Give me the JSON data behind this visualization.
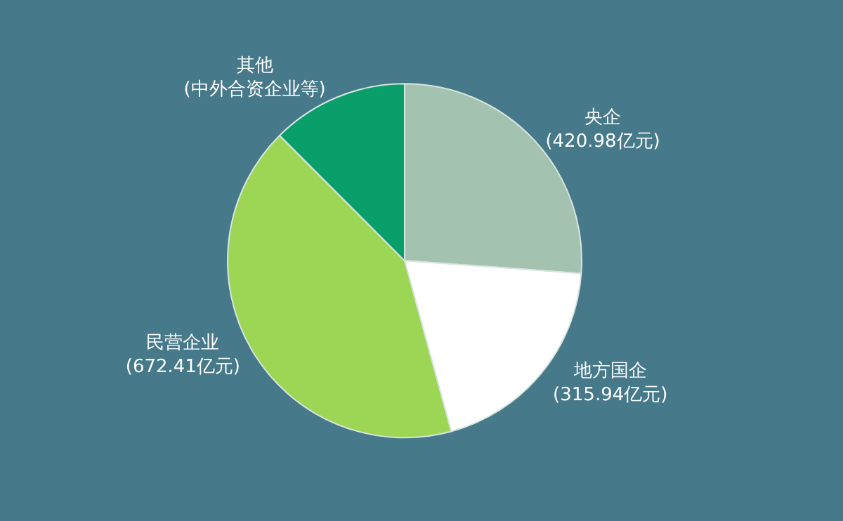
{
  "chart_data": {
    "type": "pie",
    "categories": [
      "央企",
      "地方国企",
      "民营企业",
      "其他\n(中外合资企业等)"
    ],
    "values": [
      420.98,
      315.94,
      672.41,
      201
    ],
    "value_labels": [
      "(420.98亿元)",
      "(315.94亿元)",
      "(672.41亿元)",
      null
    ],
    "colors": [
      "#a3c2b0",
      "#ffffff",
      "#9cd654",
      "#0a9e6a"
    ],
    "legend": false
  }
}
